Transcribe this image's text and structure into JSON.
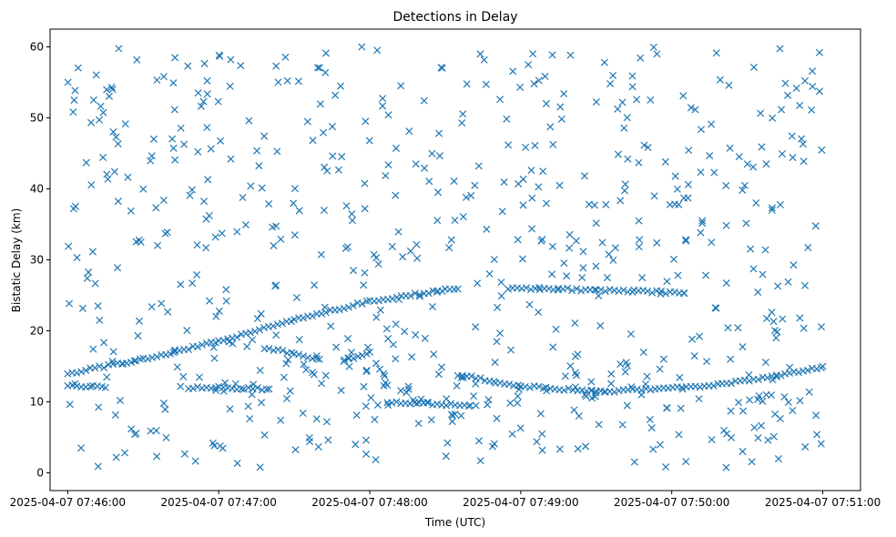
{
  "chart_data": {
    "type": "scatter",
    "title": "Detections in Delay",
    "xlabel": "Time (UTC)",
    "ylabel": "Bistatic Delay (km)",
    "x_unit": "time",
    "xlim": [
      "2025-04-07 07:45:53",
      "2025-04-07 07:51:15"
    ],
    "ylim": [
      -2.5,
      62.5
    ],
    "x_ticks": [
      "2025-04-07 07:46:00",
      "2025-04-07 07:47:00",
      "2025-04-07 07:48:00",
      "2025-04-07 07:49:00",
      "2025-04-07 07:50:00",
      "2025-04-07 07:51:00"
    ],
    "y_ticks": [
      0,
      10,
      20,
      30,
      40,
      50,
      60
    ],
    "marker": "x",
    "color": "#1f77b4",
    "grid": false,
    "track_samples": [
      {
        "x": [
          "2025-04-07 07:46:00",
          "2025-04-07 07:46:30",
          "2025-04-07 07:47:00",
          "2025-04-07 07:47:30",
          "2025-04-07 07:48:00",
          "2025-04-07 07:48:30",
          "2025-04-07 07:48:35"
        ],
        "y": [
          14.0,
          16.0,
          18.5,
          21.5,
          24.2,
          25.8,
          25.9
        ]
      },
      {
        "x": [
          "2025-04-07 07:48:55",
          "2025-04-07 07:49:15",
          "2025-04-07 07:49:30",
          "2025-04-07 07:49:45",
          "2025-04-07 07:50:05"
        ],
        "y": [
          26.0,
          25.9,
          25.7,
          25.6,
          25.3
        ]
      },
      {
        "x": [
          "2025-04-07 07:46:00",
          "2025-04-07 07:46:10",
          "2025-04-07 07:46:15"
        ],
        "y": [
          12.3,
          12.1,
          12.0
        ]
      },
      {
        "x": [
          "2025-04-07 07:46:48",
          "2025-04-07 07:47:00",
          "2025-04-07 07:47:10",
          "2025-04-07 07:47:20"
        ],
        "y": [
          12.0,
          12.0,
          11.9,
          11.8
        ]
      },
      {
        "x": [
          "2025-04-07 07:47:20",
          "2025-04-07 07:47:30",
          "2025-04-07 07:47:40"
        ],
        "y": [
          17.5,
          16.8,
          16.0
        ]
      },
      {
        "x": [
          "2025-04-07 07:47:50",
          "2025-04-07 07:47:57",
          "2025-04-07 07:48:00"
        ],
        "y": [
          16.0,
          16.5,
          17.0
        ]
      },
      {
        "x": [
          "2025-04-07 07:48:07",
          "2025-04-07 07:48:25",
          "2025-04-07 07:48:40"
        ],
        "y": [
          10.0,
          9.7,
          9.5
        ]
      },
      {
        "x": [
          "2025-04-07 07:48:35",
          "2025-04-07 07:48:50",
          "2025-04-07 07:49:00",
          "2025-04-07 07:49:10",
          "2025-04-07 07:49:30",
          "2025-04-07 07:49:55",
          "2025-04-07 07:50:20",
          "2025-04-07 07:50:45",
          "2025-04-07 07:51:00"
        ],
        "y": [
          13.8,
          12.8,
          12.2,
          12.0,
          11.4,
          11.8,
          12.5,
          13.8,
          15.0
        ]
      },
      {
        "x": [
          "2025-04-07 07:47:25",
          "2025-04-07 07:47:55",
          "2025-04-07 07:48:20",
          "2025-04-07 07:48:40",
          "2025-04-07 07:49:10",
          "2025-04-07 07:49:45",
          "2025-04-07 07:50:10",
          "2025-04-07 07:50:35",
          "2025-04-07 07:51:00"
        ],
        "y": [
          11.0,
          16.0,
          9.8,
          9.2,
          12.0,
          11.5,
          9.8,
          9.6,
          10.0
        ]
      }
    ],
    "clutter_seed": 20250407,
    "clutter_count": 620
  }
}
